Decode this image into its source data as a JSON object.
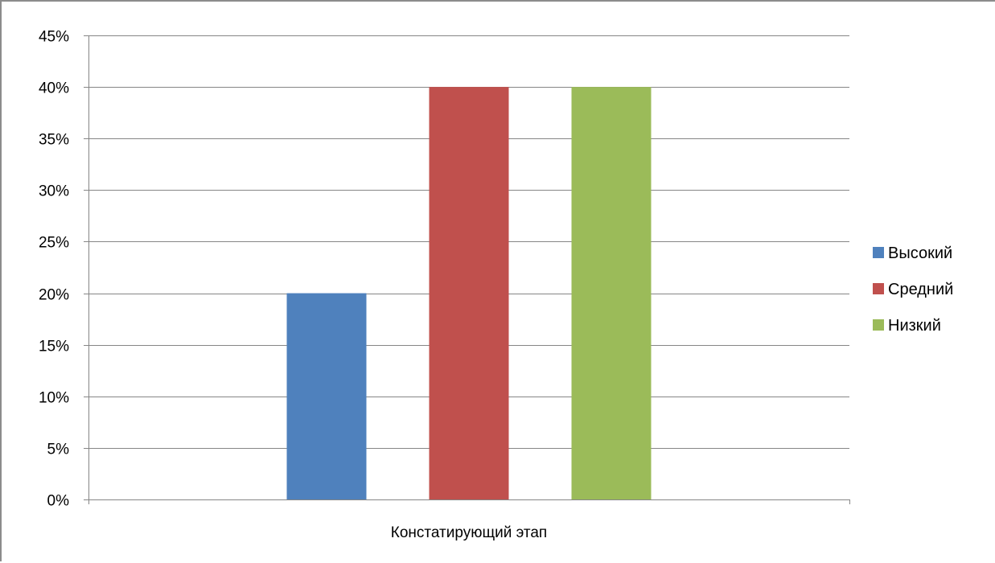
{
  "chart_data": {
    "type": "bar",
    "title": "",
    "xlabel": "",
    "ylabel": "",
    "categories": [
      "Констатирующий этап"
    ],
    "series": [
      {
        "name": "Высокий",
        "values": [
          20
        ],
        "color": "#4f81bd"
      },
      {
        "name": "Средний",
        "values": [
          40
        ],
        "color": "#c0504d"
      },
      {
        "name": "Низкий",
        "values": [
          40
        ],
        "color": "#9bbb59"
      }
    ],
    "ylim": [
      0,
      45
    ],
    "y_ticks": [
      0,
      5,
      10,
      15,
      20,
      25,
      30,
      35,
      40,
      45
    ],
    "y_tick_format": "percent",
    "grid": true,
    "legend_position": "right"
  }
}
